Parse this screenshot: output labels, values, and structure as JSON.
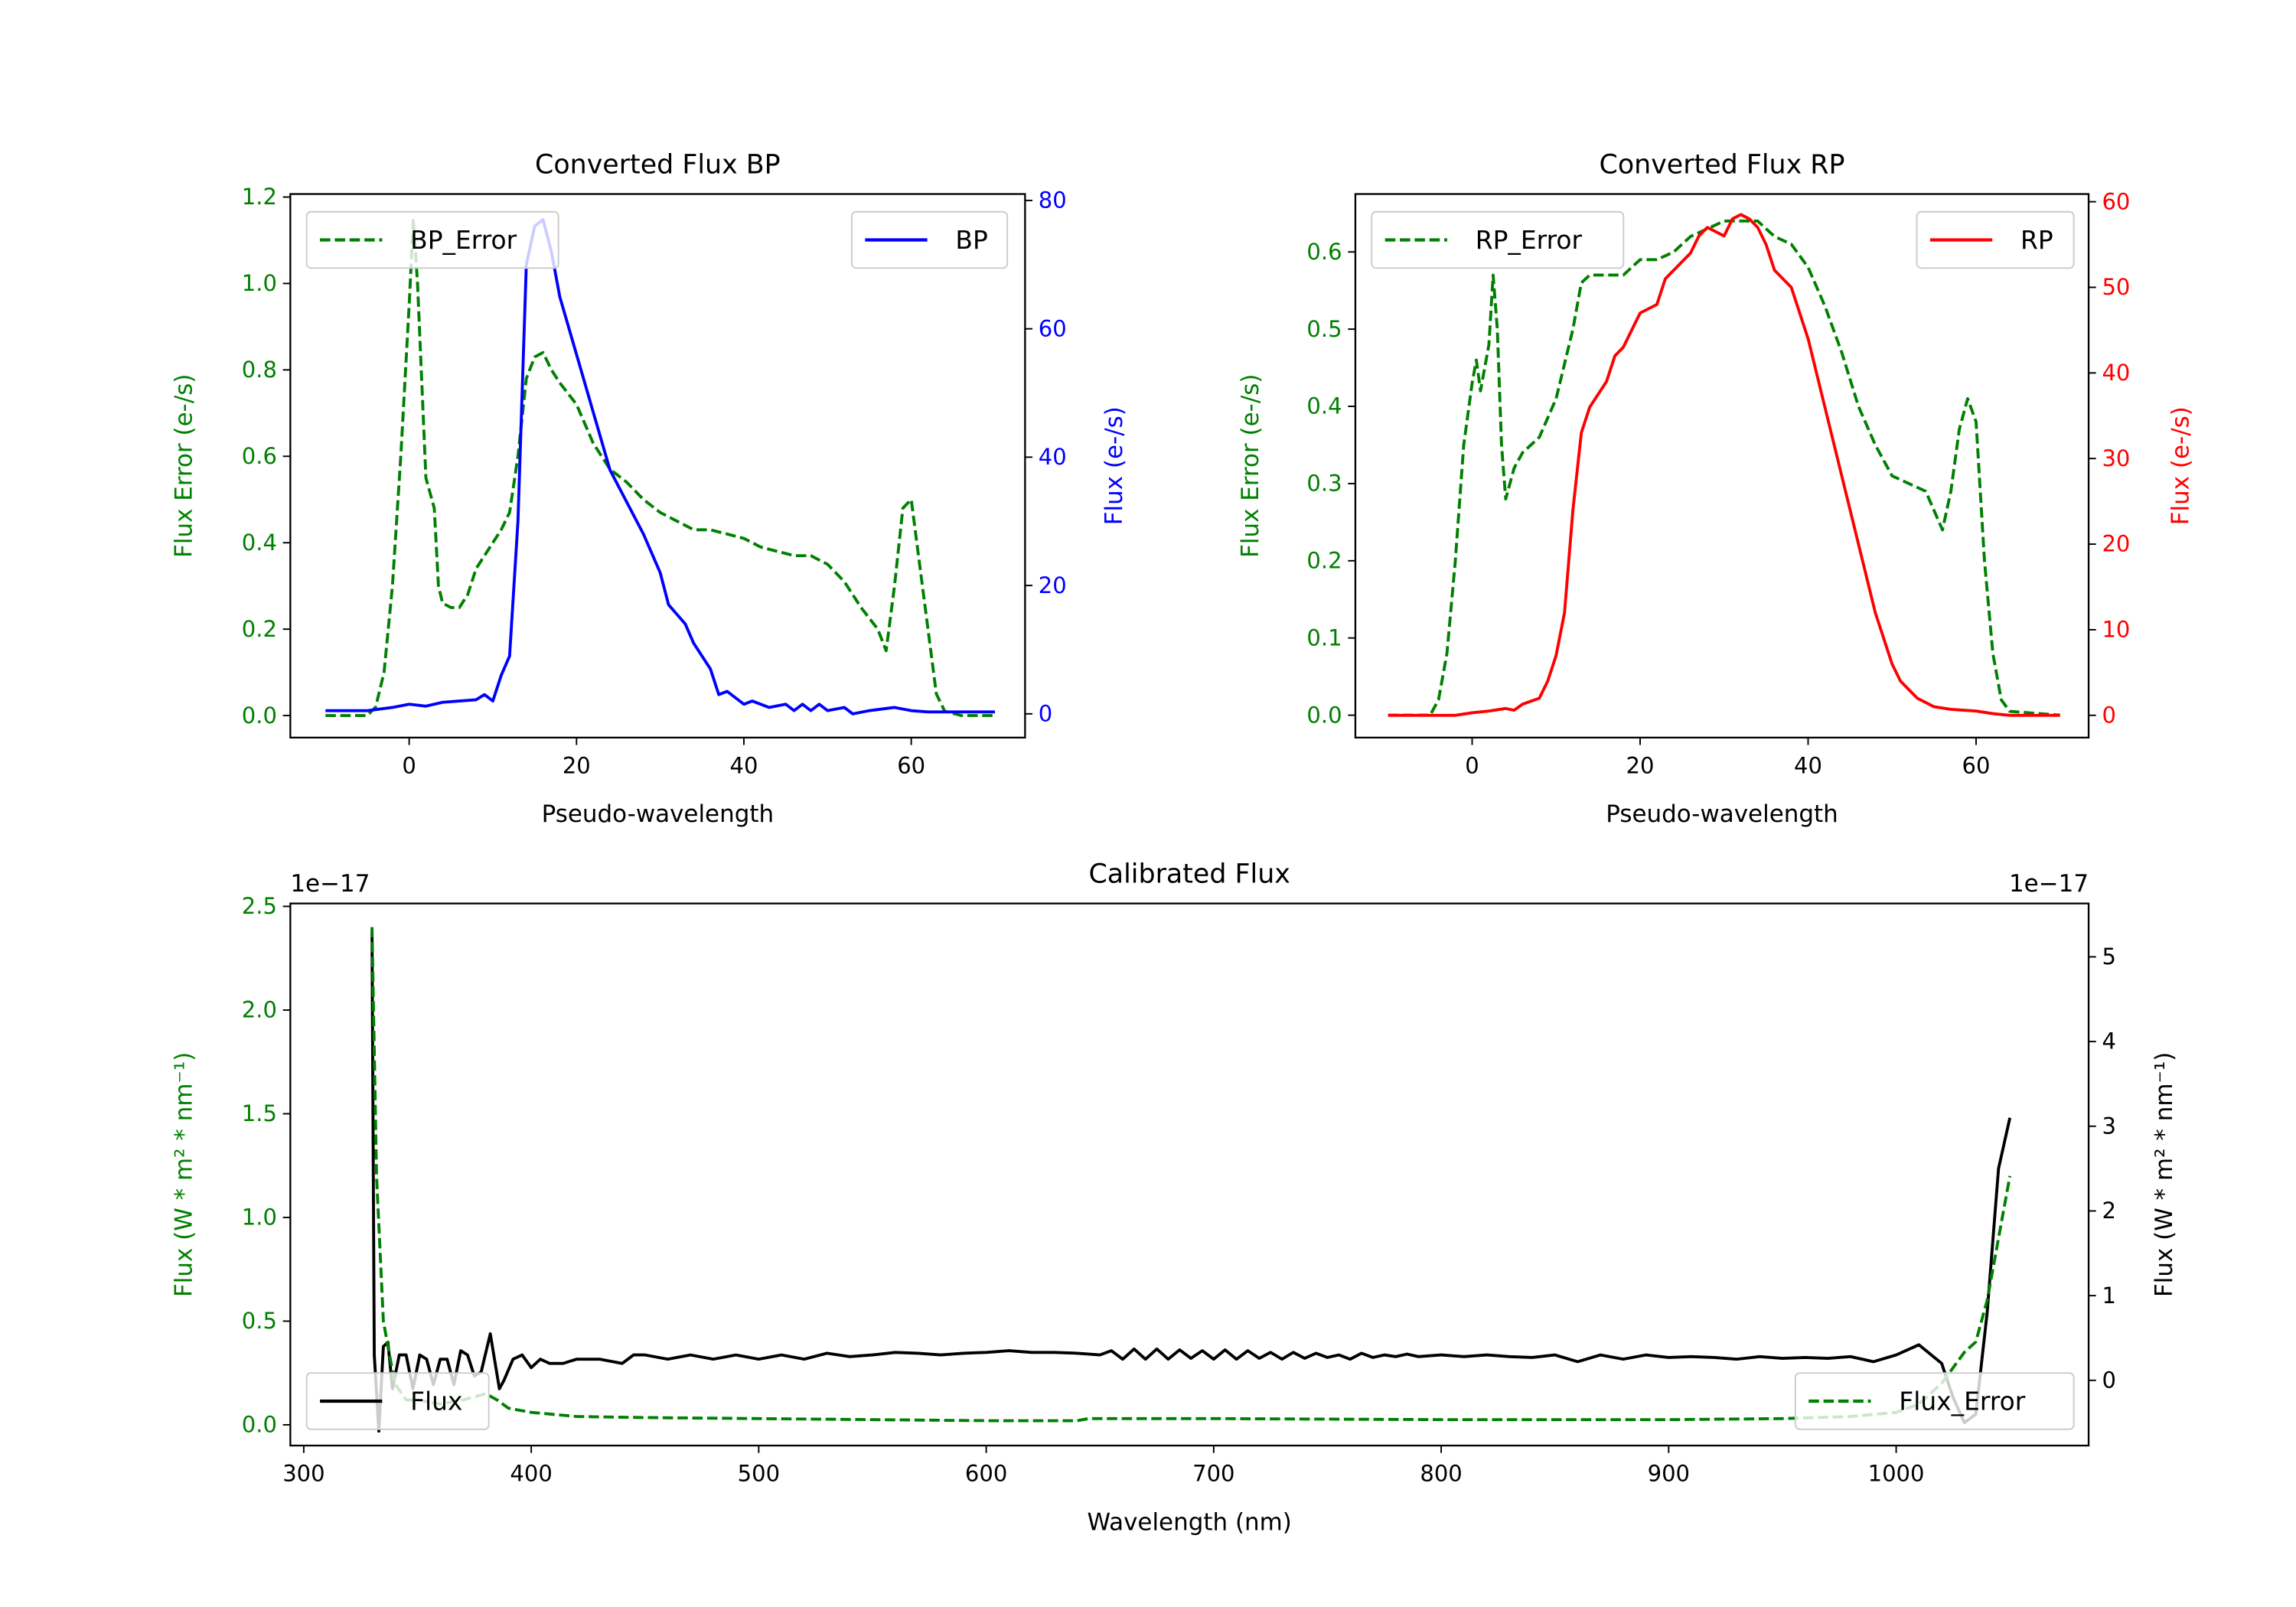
{
  "colors": {
    "green": "#008000",
    "blue": "#0000ff",
    "red": "#ff0000",
    "black": "#000000"
  },
  "chart_data": [
    {
      "type": "line",
      "title": "Converted Flux BP",
      "xlabel": "Pseudo-wavelength",
      "ylabel_left": "Flux Error (e-/s)",
      "ylabel_right": "Flux (e-/s)",
      "xlim": [
        -14.2,
        73.6
      ],
      "ylim_left": [
        -0.051,
        1.207
      ],
      "ylim_right": [
        -3.7,
        81
      ],
      "xticks": [
        0,
        20,
        40,
        60
      ],
      "xtick_labels": [
        "0",
        "20",
        "40",
        "60"
      ],
      "yticks_left": [
        0,
        0.2,
        0.4,
        0.6,
        0.8,
        1.0,
        1.2
      ],
      "ytick_labels_left": [
        "0.0",
        "0.2",
        "0.4",
        "0.6",
        "0.8",
        "1.0",
        "1.2"
      ],
      "yticks_right": [
        0,
        20,
        40,
        60,
        80
      ],
      "ytick_labels_right": [
        "0",
        "20",
        "40",
        "60",
        "80"
      ],
      "left_color": "#008000",
      "right_color": "#0000ff",
      "grid": false,
      "series": [
        {
          "name": "BP_Error",
          "axis": "left",
          "style": "dashed",
          "color": "#008000",
          "legend": "upper-left",
          "x": [
            -10,
            -5,
            -4,
            -3,
            -2,
            -1,
            0,
            0.5,
            1,
            2,
            3,
            3.5,
            4,
            5,
            6,
            7,
            8,
            9,
            10,
            11,
            12,
            13,
            14,
            15,
            16,
            17,
            18,
            20,
            22,
            24,
            26,
            28,
            30,
            32,
            34,
            36,
            38,
            40,
            42,
            44,
            46,
            48,
            50,
            52,
            54,
            56,
            57,
            58,
            59,
            60,
            61,
            62,
            63,
            64,
            66,
            70
          ],
          "y": [
            0,
            0,
            0.02,
            0.1,
            0.3,
            0.6,
            0.95,
            1.15,
            1.0,
            0.55,
            0.48,
            0.3,
            0.26,
            0.25,
            0.25,
            0.28,
            0.34,
            0.37,
            0.4,
            0.43,
            0.47,
            0.6,
            0.78,
            0.83,
            0.84,
            0.8,
            0.77,
            0.72,
            0.63,
            0.57,
            0.54,
            0.5,
            0.47,
            0.45,
            0.43,
            0.43,
            0.42,
            0.41,
            0.39,
            0.38,
            0.37,
            0.37,
            0.35,
            0.31,
            0.25,
            0.2,
            0.15,
            0.3,
            0.48,
            0.5,
            0.35,
            0.2,
            0.05,
            0.01,
            0,
            0
          ]
        },
        {
          "name": "BP",
          "axis": "right",
          "style": "solid",
          "color": "#0000ff",
          "legend": "upper-right",
          "x": [
            -10,
            -5,
            -2,
            0,
            2,
            4,
            6,
            8,
            9,
            10,
            11,
            12,
            13,
            14,
            15,
            16,
            17,
            18,
            20,
            22,
            24,
            26,
            28,
            30,
            31,
            33,
            34,
            36,
            37,
            38,
            40,
            41,
            43,
            45,
            46,
            47,
            48,
            49,
            50,
            52,
            53,
            55,
            58,
            60,
            62,
            70
          ],
          "y": [
            0.5,
            0.5,
            1,
            1.5,
            1.2,
            1.8,
            2,
            2.2,
            3,
            2,
            6,
            9,
            30,
            70,
            76,
            77,
            72,
            65,
            56,
            47,
            38,
            33,
            28,
            22,
            17,
            14,
            11,
            7,
            3,
            3.5,
            1.5,
            2,
            1,
            1.5,
            0.5,
            1.5,
            0.5,
            1.5,
            0.5,
            1,
            0,
            0.5,
            1,
            0.5,
            0.3,
            0.3
          ]
        }
      ]
    },
    {
      "type": "line",
      "title": "Converted Flux RP",
      "xlabel": "Pseudo-wavelength",
      "ylabel_left": "Flux Error (e-/s)",
      "ylabel_right": "Flux (e-/s)",
      "xlim": [
        -13.9,
        73.4
      ],
      "ylim_left": [
        -0.029,
        0.675
      ],
      "ylim_right": [
        -2.6,
        60.9
      ],
      "xticks": [
        0,
        20,
        40,
        60
      ],
      "xtick_labels": [
        "0",
        "20",
        "40",
        "60"
      ],
      "yticks_left": [
        0,
        0.1,
        0.2,
        0.3,
        0.4,
        0.5,
        0.6
      ],
      "ytick_labels_left": [
        "0.0",
        "0.1",
        "0.2",
        "0.3",
        "0.4",
        "0.5",
        "0.6"
      ],
      "yticks_right": [
        0,
        10,
        20,
        30,
        40,
        50,
        60
      ],
      "ytick_labels_right": [
        "0",
        "10",
        "20",
        "30",
        "40",
        "50",
        "60"
      ],
      "left_color": "#008000",
      "right_color": "#ff0000",
      "grid": false,
      "series": [
        {
          "name": "RP_Error",
          "axis": "left",
          "style": "dashed",
          "color": "#008000",
          "legend": "upper-left",
          "x": [
            -10,
            -5,
            -4,
            -3,
            -2,
            -1,
            0,
            0.5,
            1,
            2,
            2.5,
            3,
            3.5,
            4,
            5,
            6,
            8,
            10,
            12,
            13,
            14,
            16,
            18,
            20,
            22,
            24,
            26,
            28,
            30,
            32,
            34,
            36,
            38,
            40,
            42,
            44,
            46,
            48,
            50,
            52,
            54,
            56,
            57,
            58,
            59,
            60,
            61,
            62,
            63,
            64,
            70
          ],
          "y": [
            0,
            0,
            0.02,
            0.08,
            0.2,
            0.35,
            0.43,
            0.46,
            0.42,
            0.48,
            0.57,
            0.5,
            0.35,
            0.28,
            0.32,
            0.34,
            0.36,
            0.41,
            0.5,
            0.56,
            0.57,
            0.57,
            0.57,
            0.59,
            0.59,
            0.6,
            0.62,
            0.63,
            0.64,
            0.64,
            0.64,
            0.62,
            0.61,
            0.58,
            0.53,
            0.47,
            0.4,
            0.35,
            0.31,
            0.3,
            0.29,
            0.24,
            0.29,
            0.37,
            0.41,
            0.38,
            0.2,
            0.08,
            0.02,
            0.005,
            0
          ]
        },
        {
          "name": "RP",
          "axis": "right",
          "style": "solid",
          "color": "#ff0000",
          "legend": "upper-right",
          "x": [
            -10,
            -2,
            0,
            2,
            4,
            5,
            6,
            8,
            9,
            10,
            11,
            12,
            13,
            14,
            16,
            17,
            18,
            19,
            20,
            22,
            23,
            24,
            26,
            27,
            28,
            30,
            31,
            32,
            33,
            34,
            35,
            36,
            37,
            38,
            40,
            42,
            44,
            46,
            48,
            50,
            51,
            52,
            53,
            54,
            55,
            57,
            60,
            62,
            64,
            70
          ],
          "y": [
            0,
            0,
            0.3,
            0.5,
            0.8,
            0.6,
            1.3,
            2,
            4,
            7,
            12,
            24,
            33,
            36,
            39,
            42,
            43,
            45,
            47,
            48,
            51,
            52,
            54,
            56,
            57,
            56,
            58,
            58.5,
            58,
            57,
            55,
            52,
            51,
            50,
            44,
            36,
            28,
            20,
            12,
            6,
            4,
            3,
            2,
            1.5,
            1,
            0.7,
            0.5,
            0.2,
            0,
            0
          ]
        }
      ]
    },
    {
      "type": "line",
      "title": "Calibrated Flux",
      "xlabel": "Wavelength (nm)",
      "ylabel_left": "Flux (W * m² * nm⁻¹)",
      "ylabel_right": "Flux (W * m² * nm⁻¹)",
      "offset_left": "1e−17",
      "offset_right": "1e−17",
      "xlim": [
        294.1,
        1084.6
      ],
      "ylim_left": [
        -0.1,
        2.514
      ],
      "ylim_right": [
        -0.77,
        5.63
      ],
      "xticks": [
        300,
        400,
        500,
        600,
        700,
        800,
        900,
        1000
      ],
      "xtick_labels": [
        "300",
        "400",
        "500",
        "600",
        "700",
        "800",
        "900",
        "1000"
      ],
      "yticks_left": [
        0,
        0.5,
        1.0,
        1.5,
        2.0,
        2.5
      ],
      "ytick_labels_left": [
        "0.0",
        "0.5",
        "1.0",
        "1.5",
        "2.0",
        "2.5"
      ],
      "yticks_right": [
        0,
        1,
        2,
        3,
        4,
        5
      ],
      "ytick_labels_right": [
        "0",
        "1",
        "2",
        "3",
        "4",
        "5"
      ],
      "left_color": "#008000",
      "right_color": "#000000",
      "grid": false,
      "series": [
        {
          "name": "Flux",
          "axis": "right",
          "style": "solid",
          "color": "#000000",
          "legend": "lower-left",
          "x": [
            330,
            331,
            333,
            335,
            337,
            339,
            342,
            345,
            348,
            351,
            354,
            357,
            360,
            363,
            366,
            369,
            372,
            375,
            378,
            382,
            386,
            388,
            392,
            396,
            400,
            404,
            408,
            414,
            420,
            430,
            440,
            445,
            450,
            460,
            470,
            480,
            490,
            500,
            510,
            520,
            530,
            540,
            550,
            560,
            570,
            580,
            590,
            600,
            610,
            620,
            630,
            640,
            650,
            655,
            660,
            665,
            670,
            675,
            680,
            685,
            690,
            695,
            700,
            705,
            710,
            715,
            720,
            725,
            730,
            735,
            740,
            745,
            750,
            755,
            760,
            765,
            770,
            775,
            780,
            785,
            790,
            800,
            810,
            820,
            830,
            840,
            850,
            860,
            870,
            880,
            890,
            900,
            910,
            920,
            930,
            940,
            950,
            960,
            970,
            980,
            990,
            1000,
            1010,
            1020,
            1025,
            1030,
            1035,
            1040,
            1045,
            1050
          ],
          "y": [
            5.3,
            0.3,
            -0.6,
            0.4,
            0.45,
            -0.1,
            0.3,
            0.3,
            -0.1,
            0.3,
            0.25,
            -0.05,
            0.25,
            0.25,
            -0.05,
            0.35,
            0.3,
            0.05,
            0.1,
            0.55,
            -0.1,
            0.0,
            0.25,
            0.3,
            0.15,
            0.25,
            0.2,
            0.2,
            0.25,
            0.25,
            0.2,
            0.3,
            0.3,
            0.25,
            0.3,
            0.25,
            0.3,
            0.25,
            0.3,
            0.25,
            0.32,
            0.28,
            0.3,
            0.33,
            0.32,
            0.3,
            0.32,
            0.33,
            0.35,
            0.33,
            0.33,
            0.32,
            0.3,
            0.35,
            0.25,
            0.37,
            0.25,
            0.37,
            0.25,
            0.36,
            0.26,
            0.35,
            0.25,
            0.36,
            0.25,
            0.35,
            0.26,
            0.33,
            0.25,
            0.33,
            0.26,
            0.32,
            0.27,
            0.3,
            0.25,
            0.32,
            0.27,
            0.3,
            0.28,
            0.31,
            0.28,
            0.3,
            0.28,
            0.3,
            0.28,
            0.27,
            0.3,
            0.22,
            0.3,
            0.25,
            0.3,
            0.27,
            0.28,
            0.27,
            0.25,
            0.28,
            0.26,
            0.27,
            0.26,
            0.28,
            0.22,
            0.3,
            0.42,
            0.2,
            -0.2,
            -0.5,
            -0.4,
            0.8,
            2.5,
            3.1
          ]
        },
        {
          "name": "Flux_Error",
          "axis": "left",
          "style": "dashed",
          "color": "#008000",
          "legend": "lower-right",
          "x": [
            330,
            332,
            335,
            340,
            345,
            350,
            360,
            370,
            380,
            385,
            390,
            400,
            420,
            450,
            500,
            550,
            600,
            640,
            645,
            700,
            800,
            900,
            950,
            980,
            1000,
            1010,
            1020,
            1030,
            1035,
            1040,
            1045,
            1050
          ],
          "y": [
            2.4,
            1.2,
            0.5,
            0.2,
            0.12,
            0.12,
            0.1,
            0.12,
            0.15,
            0.12,
            0.08,
            0.06,
            0.04,
            0.035,
            0.03,
            0.025,
            0.02,
            0.02,
            0.03,
            0.03,
            0.025,
            0.025,
            0.03,
            0.04,
            0.06,
            0.1,
            0.2,
            0.35,
            0.4,
            0.6,
            0.9,
            1.2
          ]
        }
      ]
    }
  ]
}
